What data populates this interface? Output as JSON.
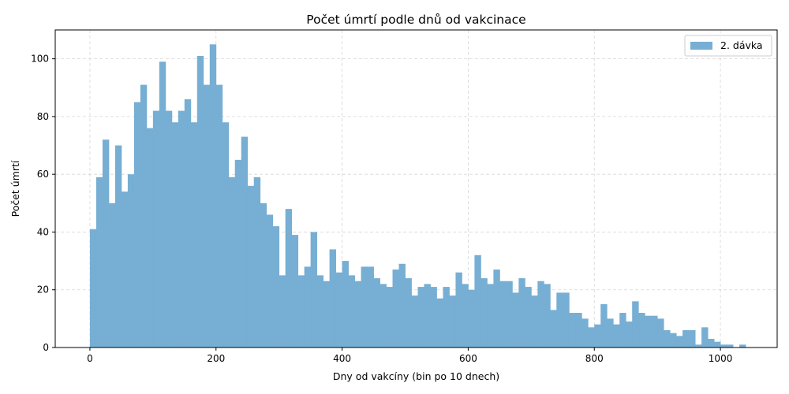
{
  "chart_data": {
    "type": "bar",
    "title": "Počet úmrtí podle dnů od vakcinace",
    "xlabel": "Dny od vakcíny (bin po 10 dnech)",
    "ylabel": "Počet úmrtí",
    "xlim": [
      -55,
      1090
    ],
    "ylim": [
      0,
      110
    ],
    "xticks": [
      0,
      200,
      400,
      600,
      800,
      1000
    ],
    "yticks": [
      0,
      20,
      40,
      60,
      80,
      100
    ],
    "grid": true,
    "legend_position": "top-right",
    "bin_width": 10,
    "series": [
      {
        "name": "2. dávka",
        "color": "#77aed3",
        "bins": [
          [
            0,
            41
          ],
          [
            10,
            59
          ],
          [
            20,
            72
          ],
          [
            30,
            50
          ],
          [
            40,
            70
          ],
          [
            50,
            54
          ],
          [
            60,
            60
          ],
          [
            70,
            85
          ],
          [
            80,
            91
          ],
          [
            90,
            76
          ],
          [
            100,
            82
          ],
          [
            110,
            99
          ],
          [
            120,
            82
          ],
          [
            130,
            78
          ],
          [
            140,
            82
          ],
          [
            150,
            86
          ],
          [
            160,
            78
          ],
          [
            170,
            101
          ],
          [
            180,
            91
          ],
          [
            190,
            105
          ],
          [
            200,
            91
          ],
          [
            210,
            78
          ],
          [
            220,
            59
          ],
          [
            230,
            65
          ],
          [
            240,
            73
          ],
          [
            250,
            56
          ],
          [
            260,
            59
          ],
          [
            270,
            50
          ],
          [
            280,
            46
          ],
          [
            290,
            42
          ],
          [
            300,
            25
          ],
          [
            310,
            48
          ],
          [
            320,
            39
          ],
          [
            330,
            25
          ],
          [
            340,
            28
          ],
          [
            350,
            40
          ],
          [
            360,
            25
          ],
          [
            370,
            23
          ],
          [
            380,
            34
          ],
          [
            390,
            26
          ],
          [
            400,
            30
          ],
          [
            410,
            25
          ],
          [
            420,
            23
          ],
          [
            430,
            28
          ],
          [
            440,
            28
          ],
          [
            450,
            24
          ],
          [
            460,
            22
          ],
          [
            470,
            21
          ],
          [
            480,
            27
          ],
          [
            490,
            29
          ],
          [
            500,
            24
          ],
          [
            510,
            18
          ],
          [
            520,
            21
          ],
          [
            530,
            22
          ],
          [
            540,
            21
          ],
          [
            550,
            17
          ],
          [
            560,
            21
          ],
          [
            570,
            18
          ],
          [
            580,
            26
          ],
          [
            590,
            22
          ],
          [
            600,
            20
          ],
          [
            610,
            32
          ],
          [
            620,
            24
          ],
          [
            630,
            22
          ],
          [
            640,
            27
          ],
          [
            650,
            23
          ],
          [
            660,
            23
          ],
          [
            670,
            19
          ],
          [
            680,
            24
          ],
          [
            690,
            21
          ],
          [
            700,
            18
          ],
          [
            710,
            23
          ],
          [
            720,
            22
          ],
          [
            730,
            13
          ],
          [
            740,
            19
          ],
          [
            750,
            19
          ],
          [
            760,
            12
          ],
          [
            770,
            12
          ],
          [
            780,
            10
          ],
          [
            790,
            7
          ],
          [
            800,
            8
          ],
          [
            810,
            15
          ],
          [
            820,
            10
          ],
          [
            830,
            8
          ],
          [
            840,
            12
          ],
          [
            850,
            9
          ],
          [
            860,
            16
          ],
          [
            870,
            12
          ],
          [
            880,
            11
          ],
          [
            890,
            11
          ],
          [
            900,
            10
          ],
          [
            910,
            6
          ],
          [
            920,
            5
          ],
          [
            930,
            4
          ],
          [
            940,
            6
          ],
          [
            950,
            6
          ],
          [
            960,
            1
          ],
          [
            970,
            7
          ],
          [
            980,
            3
          ],
          [
            990,
            2
          ],
          [
            1000,
            1
          ],
          [
            1010,
            1
          ],
          [
            1030,
            1
          ]
        ]
      }
    ]
  }
}
